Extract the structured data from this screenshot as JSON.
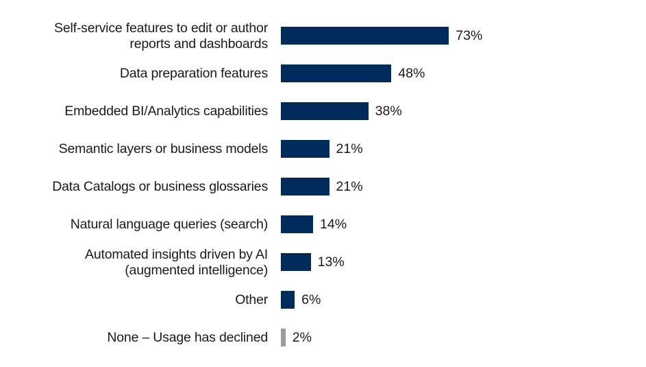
{
  "chart_data": {
    "type": "bar",
    "orientation": "horizontal",
    "title": "",
    "xlabel": "",
    "ylabel": "",
    "xlim": [
      0,
      100
    ],
    "grid": false,
    "legend": null,
    "categories": [
      "Self-service features to edit or author reports and dashboards",
      "Data preparation features",
      "Embedded BI/Analytics capabilities",
      "Semantic layers or business models",
      "Data Catalogs or business glossaries",
      "Natural language queries (search)",
      "Automated insights driven by AI (augmented intelligence)",
      "Other",
      "None – Usage has declined"
    ],
    "values": [
      73,
      48,
      38,
      21,
      21,
      14,
      13,
      6,
      2
    ],
    "value_labels": [
      "73%",
      "48%",
      "38%",
      "21%",
      "21%",
      "14%",
      "13%",
      "6%",
      "2%"
    ],
    "colors": [
      "#002b5c",
      "#002b5c",
      "#002b5c",
      "#002b5c",
      "#002b5c",
      "#002b5c",
      "#002b5c",
      "#002b5c",
      "#9a9ba0"
    ]
  },
  "rows": [
    {
      "label_line1": "Self-service features to edit or author",
      "label_line2": "reports and dashboards",
      "value": "73%"
    },
    {
      "label_line1": "Data preparation features",
      "label_line2": "",
      "value": "48%"
    },
    {
      "label_line1": "Embedded BI/Analytics capabilities",
      "label_line2": "",
      "value": "38%"
    },
    {
      "label_line1": "Semantic layers or business models",
      "label_line2": "",
      "value": "21%"
    },
    {
      "label_line1": "Data Catalogs or business glossaries",
      "label_line2": "",
      "value": "21%"
    },
    {
      "label_line1": "Natural language queries (search)",
      "label_line2": "",
      "value": "14%"
    },
    {
      "label_line1": "Automated insights driven by AI",
      "label_line2": "(augmented intelligence)",
      "value": "13%"
    },
    {
      "label_line1": "Other",
      "label_line2": "",
      "value": "6%"
    },
    {
      "label_line1": "None – Usage has declined",
      "label_line2": "",
      "value": "2%"
    }
  ]
}
